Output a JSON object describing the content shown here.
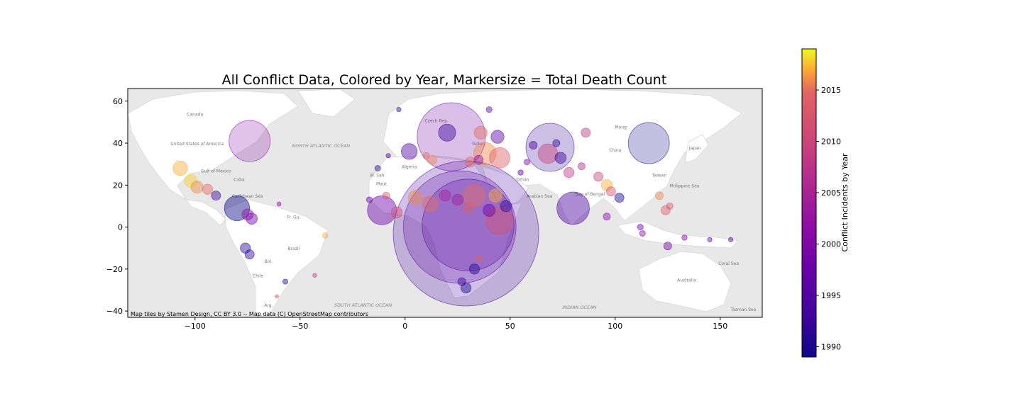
{
  "chart_data": {
    "type": "scatter",
    "title": "All Conflict Data, Colored by Year, Markersize = Total Death Count",
    "xlabel": "",
    "ylabel": "",
    "xlim": [
      -132,
      170
    ],
    "ylim": [
      -43,
      66
    ],
    "x_ticks": [
      -100,
      -50,
      0,
      50,
      100,
      150
    ],
    "y_ticks": [
      -40,
      -20,
      0,
      20,
      40,
      60
    ],
    "grid": false,
    "basemap": {
      "attribution": "Map tiles by Stamen Design, CC BY 3.0 -- Map data (C) OpenStreetMap contributors",
      "place_labels": [
        {
          "text": "Canada",
          "lon": -100,
          "lat": 53
        },
        {
          "text": "United States of America",
          "lon": -99,
          "lat": 39
        },
        {
          "text": "Gulf of Mexico",
          "lon": -90,
          "lat": 26
        },
        {
          "text": "Cuba",
          "lon": -79,
          "lat": 22
        },
        {
          "text": "Caribbean Sea",
          "lon": -75,
          "lat": 14
        },
        {
          "text": "Fr. Gu.",
          "lon": -53,
          "lat": 4
        },
        {
          "text": "Brazil",
          "lon": -53,
          "lat": -11
        },
        {
          "text": "Bol.",
          "lon": -65,
          "lat": -17
        },
        {
          "text": "Chile",
          "lon": -70,
          "lat": -24
        },
        {
          "text": "Arg.",
          "lon": -65,
          "lat": -38
        },
        {
          "text": "NORTH ATLANTIC OCEAN",
          "lon": -40,
          "lat": 38
        },
        {
          "text": "SOUTH ATLANTIC OCEAN",
          "lon": -20,
          "lat": -38
        },
        {
          "text": "W. Sah.",
          "lon": -13,
          "lat": 24
        },
        {
          "text": "Maur.",
          "lon": -11,
          "lat": 20
        },
        {
          "text": "Algeria",
          "lon": 2,
          "lat": 28
        },
        {
          "text": "Czech Rep.",
          "lon": 15,
          "lat": 50
        },
        {
          "text": "Turkey",
          "lon": 35,
          "lat": 39
        },
        {
          "text": "Oman",
          "lon": 56,
          "lat": 22
        },
        {
          "text": "Arabian Sea",
          "lon": 64,
          "lat": 14
        },
        {
          "text": "Bay of Bengal",
          "lon": 88,
          "lat": 15
        },
        {
          "text": "Mong.",
          "lon": 103,
          "lat": 47
        },
        {
          "text": "China",
          "lon": 100,
          "lat": 36
        },
        {
          "text": "Taiwan",
          "lon": 121,
          "lat": 24
        },
        {
          "text": "Philippine Sea",
          "lon": 133,
          "lat": 19
        },
        {
          "text": "Japan",
          "lon": 138,
          "lat": 37
        },
        {
          "text": "Australia",
          "lon": 134,
          "lat": -26
        },
        {
          "text": "Coral Sea",
          "lon": 154,
          "lat": -18
        },
        {
          "text": "INDIAN OCEAN",
          "lon": 83,
          "lat": -39
        },
        {
          "text": "Tasman Sea",
          "lon": 161,
          "lat": -40
        }
      ]
    },
    "colorbar": {
      "label": "Conflict Incidents by Year",
      "colormap": "plasma",
      "min": 1989,
      "max": 2019,
      "ticks": [
        1990,
        1995,
        2000,
        2005,
        2010,
        2015
      ]
    },
    "points": [
      {
        "x": 29,
        "y": -3,
        "year": 1994,
        "deaths": 500000
      },
      {
        "x": 26,
        "y": 0,
        "year": 1996,
        "deaths": 300000
      },
      {
        "x": 30,
        "y": 1,
        "year": 1995,
        "deaths": 200000
      },
      {
        "x": 22,
        "y": 43,
        "year": 1998,
        "deaths": 110000
      },
      {
        "x": 116,
        "y": 40,
        "year": 1989,
        "deaths": 40000
      },
      {
        "x": -74,
        "y": 41,
        "year": 2001,
        "deaths": 40000
      },
      {
        "x": 69,
        "y": 38,
        "year": 1992,
        "deaths": 55000
      },
      {
        "x": 80,
        "y": 9,
        "year": 1994,
        "deaths": 25000
      },
      {
        "x": -80,
        "y": 9,
        "year": 1989,
        "deaths": 15000
      },
      {
        "x": -11,
        "y": 8,
        "year": 1998,
        "deaths": 20000
      },
      {
        "x": 45,
        "y": 3,
        "year": 2012,
        "deaths": 18000
      },
      {
        "x": 33,
        "y": 15,
        "year": 2015,
        "deaths": 12000
      },
      {
        "x": 45,
        "y": 33,
        "year": 2014,
        "deaths": 10000
      },
      {
        "x": 38,
        "y": 35,
        "year": 2016,
        "deaths": 12000
      },
      {
        "x": 68,
        "y": 35,
        "year": 2010,
        "deaths": 9000
      },
      {
        "x": 20,
        "y": 45,
        "year": 1993,
        "deaths": 7000
      },
      {
        "x": 86,
        "y": 45,
        "year": 2008,
        "deaths": 2000
      },
      {
        "x": -107,
        "y": 28,
        "year": 2017,
        "deaths": 5000
      },
      {
        "x": -102,
        "y": 22,
        "year": 2018,
        "deaths": 4000
      },
      {
        "x": -99,
        "y": 19,
        "year": 2016,
        "deaths": 3500
      },
      {
        "x": -94,
        "y": 18,
        "year": 2015,
        "deaths": 2500
      },
      {
        "x": -90,
        "y": 15,
        "year": 1992,
        "deaths": 2000
      },
      {
        "x": -75,
        "y": 6,
        "year": 2002,
        "deaths": 3000
      },
      {
        "x": -73,
        "y": 4,
        "year": 1998,
        "deaths": 3000
      },
      {
        "x": -76,
        "y": -10,
        "year": 1991,
        "deaths": 2500
      },
      {
        "x": -74,
        "y": -13,
        "year": 1992,
        "deaths": 2000
      },
      {
        "x": -38,
        "y": -4,
        "year": 2017,
        "deaths": 700
      },
      {
        "x": -57,
        "y": -26,
        "year": 1991,
        "deaths": 600
      },
      {
        "x": -43,
        "y": -23,
        "year": 2009,
        "deaths": 400
      },
      {
        "x": 2,
        "y": 36,
        "year": 1995,
        "deaths": 6000
      },
      {
        "x": 5,
        "y": 14,
        "year": 2016,
        "deaths": 5000
      },
      {
        "x": 12,
        "y": 11,
        "year": 2015,
        "deaths": 6000
      },
      {
        "x": 19,
        "y": 15,
        "year": 2005,
        "deaths": 3000
      },
      {
        "x": 36,
        "y": 45,
        "year": 2015,
        "deaths": 4000
      },
      {
        "x": 44,
        "y": 43,
        "year": 1996,
        "deaths": 4000
      },
      {
        "x": 43,
        "y": 15,
        "year": 2017,
        "deaths": 4000
      },
      {
        "x": 48,
        "y": 10,
        "year": 1992,
        "deaths": 3000
      },
      {
        "x": 40,
        "y": 8,
        "year": 1998,
        "deaths": 3500
      },
      {
        "x": 30,
        "y": 9,
        "year": 2014,
        "deaths": 3000
      },
      {
        "x": 25,
        "y": 13,
        "year": 2004,
        "deaths": 3000
      },
      {
        "x": 74,
        "y": 33,
        "year": 1993,
        "deaths": 3000
      },
      {
        "x": 78,
        "y": 26,
        "year": 2008,
        "deaths": 2500
      },
      {
        "x": 92,
        "y": 24,
        "year": 2010,
        "deaths": 2000
      },
      {
        "x": 96,
        "y": 20,
        "year": 2017,
        "deaths": 3000
      },
      {
        "x": 98,
        "y": 17,
        "year": 2012,
        "deaths": 2000
      },
      {
        "x": 102,
        "y": 14,
        "year": 1990,
        "deaths": 2000
      },
      {
        "x": 124,
        "y": 8,
        "year": 2014,
        "deaths": 2000
      },
      {
        "x": 121,
        "y": 15,
        "year": 2016,
        "deaths": 1500
      },
      {
        "x": 126,
        "y": 10,
        "year": 2013,
        "deaths": 1000
      },
      {
        "x": 96,
        "y": 5,
        "year": 2001,
        "deaths": 1200
      },
      {
        "x": 112,
        "y": 0,
        "year": 1998,
        "deaths": 800
      },
      {
        "x": 113,
        "y": -3,
        "year": 2001,
        "deaths": 800
      },
      {
        "x": 125,
        "y": -9,
        "year": 1999,
        "deaths": 1500
      },
      {
        "x": 133,
        "y": -5,
        "year": 2000,
        "deaths": 700
      },
      {
        "x": 145,
        "y": -6,
        "year": 1997,
        "deaths": 500
      },
      {
        "x": 155,
        "y": -6,
        "year": 1993,
        "deaths": 500
      },
      {
        "x": 33,
        "y": -20,
        "year": 1991,
        "deaths": 2500
      },
      {
        "x": 35,
        "y": -15,
        "year": 2014,
        "deaths": 1000
      },
      {
        "x": 29,
        "y": -29,
        "year": 1990,
        "deaths": 2500
      },
      {
        "x": 27,
        "y": -26,
        "year": 1993,
        "deaths": 1500
      },
      {
        "x": -4,
        "y": 7,
        "year": 2011,
        "deaths": 3000
      },
      {
        "x": -17,
        "y": 13,
        "year": 1998,
        "deaths": 800
      },
      {
        "x": -9,
        "y": 15,
        "year": 2013,
        "deaths": 1200
      },
      {
        "x": -13,
        "y": 28,
        "year": 1991,
        "deaths": 800
      },
      {
        "x": -8,
        "y": 34,
        "year": 1995,
        "deaths": 500
      },
      {
        "x": 10,
        "y": 34,
        "year": 2015,
        "deaths": 1000
      },
      {
        "x": 13,
        "y": 32,
        "year": 2016,
        "deaths": 2000
      },
      {
        "x": 31,
        "y": 31,
        "year": 2015,
        "deaths": 2500
      },
      {
        "x": 35,
        "y": 32,
        "year": 2002,
        "deaths": 2000
      },
      {
        "x": 55,
        "y": 26,
        "year": 1996,
        "deaths": 700
      },
      {
        "x": 58,
        "y": 31,
        "year": 2000,
        "deaths": 800
      },
      {
        "x": 61,
        "y": 39,
        "year": 1994,
        "deaths": 1500
      },
      {
        "x": 72,
        "y": 40,
        "year": 1992,
        "deaths": 1200
      },
      {
        "x": 84,
        "y": 29,
        "year": 2006,
        "deaths": 1200
      },
      {
        "x": -3,
        "y": 56,
        "year": 1992,
        "deaths": 500
      },
      {
        "x": 40,
        "y": 56,
        "year": 1996,
        "deaths": 800
      },
      {
        "x": -60,
        "y": 11,
        "year": 2002,
        "deaths": 400
      },
      {
        "x": -61,
        "y": -33,
        "year": 2012,
        "deaths": 300
      }
    ]
  }
}
